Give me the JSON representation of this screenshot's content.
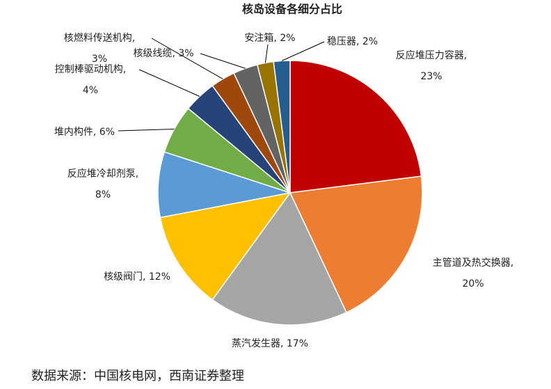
{
  "chart_data": {
    "type": "pie",
    "title": "核岛设备各细分占比",
    "categories": [
      "反应堆压力容器",
      "主管道及热交换器",
      "蒸汽发生器",
      "核级阀门",
      "反应堆冷却剂泵",
      "堆内构件",
      "控制棒驱动机构",
      "核燃料传送机构",
      "核级线缆",
      "安注箱",
      "稳压器"
    ],
    "values": [
      23,
      20,
      17,
      12,
      8,
      6,
      4,
      3,
      3,
      2,
      2
    ],
    "value_labels": [
      "23%",
      "20%",
      "17%",
      "12%",
      "8%",
      "6%",
      "4%",
      "3%",
      "3%",
      "2%",
      "2%"
    ],
    "label_separator": ", ",
    "colors": [
      "#c00000",
      "#ed7d31",
      "#a5a5a5",
      "#ffc000",
      "#5b9bd5",
      "#70ad47",
      "#264478",
      "#9e480e",
      "#636363",
      "#997300",
      "#255e91"
    ],
    "source": "数据来源：中国核电网，西南证券整理"
  }
}
